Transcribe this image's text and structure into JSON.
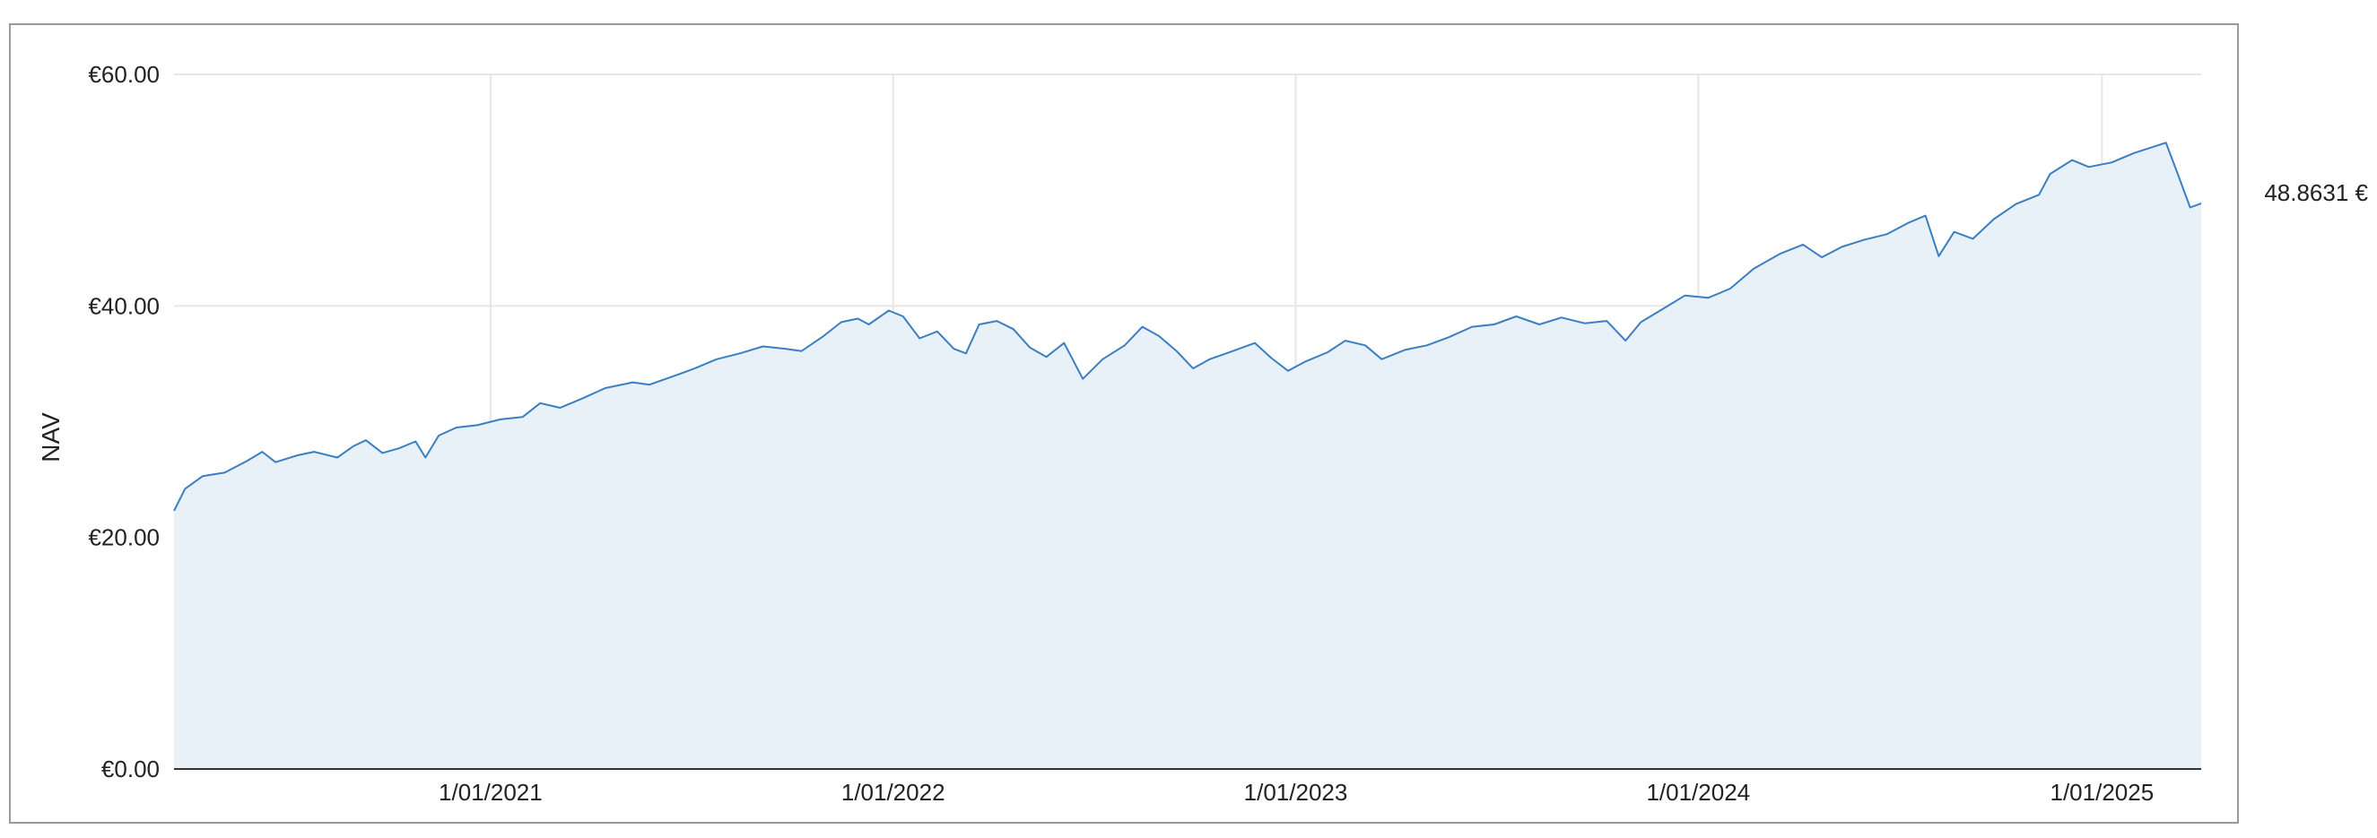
{
  "chart_data": {
    "type": "area",
    "title": "",
    "xlabel": "",
    "ylabel": "NAV",
    "xlim": [
      "2020-03-20",
      "2025-04-01"
    ],
    "ylim": [
      0,
      60
    ],
    "y_ticks": [
      {
        "value": 0,
        "label": "€0.00"
      },
      {
        "value": 20,
        "label": "€20.00"
      },
      {
        "value": 40,
        "label": "€40.00"
      },
      {
        "value": 60,
        "label": "€60.00"
      }
    ],
    "x_ticks": [
      {
        "value": "2021-01-01",
        "label": "1/01/2021"
      },
      {
        "value": "2022-01-01",
        "label": "1/01/2022"
      },
      {
        "value": "2023-01-01",
        "label": "1/01/2023"
      },
      {
        "value": "2024-01-01",
        "label": "1/01/2024"
      },
      {
        "value": "2025-01-01",
        "label": "1/01/2025"
      }
    ],
    "grid": true,
    "series": [
      {
        "color": "#3a7fc1",
        "fill": "#e9f1f8",
        "points": [
          [
            "2020-03-20",
            22.3
          ],
          [
            "2020-03-30",
            24.2
          ],
          [
            "2020-04-15",
            25.3
          ],
          [
            "2020-05-05",
            25.6
          ],
          [
            "2020-05-25",
            26.6
          ],
          [
            "2020-06-08",
            27.4
          ],
          [
            "2020-06-20",
            26.5
          ],
          [
            "2020-07-10",
            27.1
          ],
          [
            "2020-07-25",
            27.4
          ],
          [
            "2020-08-15",
            26.9
          ],
          [
            "2020-08-30",
            27.9
          ],
          [
            "2020-09-10",
            28.4
          ],
          [
            "2020-09-25",
            27.3
          ],
          [
            "2020-10-10",
            27.7
          ],
          [
            "2020-10-25",
            28.3
          ],
          [
            "2020-11-03",
            26.9
          ],
          [
            "2020-11-15",
            28.8
          ],
          [
            "2020-12-01",
            29.5
          ],
          [
            "2020-12-20",
            29.7
          ],
          [
            "2021-01-10",
            30.2
          ],
          [
            "2021-01-30",
            30.4
          ],
          [
            "2021-02-15",
            31.6
          ],
          [
            "2021-03-05",
            31.2
          ],
          [
            "2021-03-25",
            32.0
          ],
          [
            "2021-04-15",
            32.9
          ],
          [
            "2021-05-10",
            33.4
          ],
          [
            "2021-05-25",
            33.2
          ],
          [
            "2021-06-15",
            33.9
          ],
          [
            "2021-07-05",
            34.6
          ],
          [
            "2021-07-25",
            35.4
          ],
          [
            "2021-08-15",
            35.9
          ],
          [
            "2021-09-05",
            36.5
          ],
          [
            "2021-09-25",
            36.3
          ],
          [
            "2021-10-10",
            36.1
          ],
          [
            "2021-10-30",
            37.4
          ],
          [
            "2021-11-15",
            38.6
          ],
          [
            "2021-11-30",
            38.9
          ],
          [
            "2021-12-10",
            38.4
          ],
          [
            "2021-12-28",
            39.6
          ],
          [
            "2022-01-10",
            39.1
          ],
          [
            "2022-01-25",
            37.2
          ],
          [
            "2022-02-10",
            37.8
          ],
          [
            "2022-02-25",
            36.3
          ],
          [
            "2022-03-08",
            35.9
          ],
          [
            "2022-03-20",
            38.4
          ],
          [
            "2022-04-05",
            38.7
          ],
          [
            "2022-04-20",
            38.0
          ],
          [
            "2022-05-05",
            36.4
          ],
          [
            "2022-05-20",
            35.6
          ],
          [
            "2022-06-05",
            36.8
          ],
          [
            "2022-06-22",
            33.7
          ],
          [
            "2022-07-10",
            35.4
          ],
          [
            "2022-07-30",
            36.6
          ],
          [
            "2022-08-15",
            38.2
          ],
          [
            "2022-08-30",
            37.4
          ],
          [
            "2022-09-15",
            36.1
          ],
          [
            "2022-09-30",
            34.6
          ],
          [
            "2022-10-15",
            35.4
          ],
          [
            "2022-11-05",
            36.1
          ],
          [
            "2022-11-25",
            36.8
          ],
          [
            "2022-12-10",
            35.5
          ],
          [
            "2022-12-25",
            34.4
          ],
          [
            "2023-01-10",
            35.2
          ],
          [
            "2023-01-30",
            36.0
          ],
          [
            "2023-02-15",
            37.0
          ],
          [
            "2023-03-05",
            36.6
          ],
          [
            "2023-03-20",
            35.4
          ],
          [
            "2023-04-10",
            36.2
          ],
          [
            "2023-04-30",
            36.6
          ],
          [
            "2023-05-20",
            37.3
          ],
          [
            "2023-06-10",
            38.2
          ],
          [
            "2023-06-30",
            38.4
          ],
          [
            "2023-07-20",
            39.1
          ],
          [
            "2023-08-10",
            38.4
          ],
          [
            "2023-08-30",
            39.0
          ],
          [
            "2023-09-20",
            38.5
          ],
          [
            "2023-10-10",
            38.7
          ],
          [
            "2023-10-27",
            37.0
          ],
          [
            "2023-11-10",
            38.6
          ],
          [
            "2023-12-01",
            39.8
          ],
          [
            "2023-12-20",
            40.9
          ],
          [
            "2024-01-10",
            40.7
          ],
          [
            "2024-01-30",
            41.5
          ],
          [
            "2024-02-20",
            43.2
          ],
          [
            "2024-03-15",
            44.5
          ],
          [
            "2024-04-05",
            45.3
          ],
          [
            "2024-04-22",
            44.2
          ],
          [
            "2024-05-10",
            45.1
          ],
          [
            "2024-05-30",
            45.7
          ],
          [
            "2024-06-20",
            46.2
          ],
          [
            "2024-07-10",
            47.2
          ],
          [
            "2024-07-25",
            47.8
          ],
          [
            "2024-08-06",
            44.3
          ],
          [
            "2024-08-20",
            46.4
          ],
          [
            "2024-09-06",
            45.8
          ],
          [
            "2024-09-25",
            47.5
          ],
          [
            "2024-10-15",
            48.8
          ],
          [
            "2024-11-05",
            49.6
          ],
          [
            "2024-11-15",
            51.4
          ],
          [
            "2024-12-05",
            52.6
          ],
          [
            "2024-12-20",
            52.0
          ],
          [
            "2025-01-10",
            52.4
          ],
          [
            "2025-01-30",
            53.2
          ],
          [
            "2025-02-15",
            53.7
          ],
          [
            "2025-02-28",
            54.1
          ],
          [
            "2025-03-10",
            51.6
          ],
          [
            "2025-03-22",
            48.5
          ],
          [
            "2025-04-01",
            48.8631
          ]
        ]
      }
    ],
    "end_label": "48.8631 €"
  }
}
